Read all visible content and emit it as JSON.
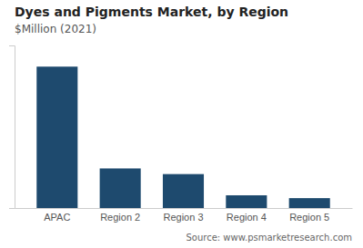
{
  "chart_data": {
    "type": "bar",
    "title": "Dyes and Pigments Market, by Region",
    "subtitle": "$Million (2021)",
    "categories": [
      "APAC",
      "Region 2",
      "Region 3",
      "Region 4",
      "Region 5"
    ],
    "values": [
      100,
      28,
      24,
      9,
      7
    ],
    "color": "#1e4a6e",
    "ylim": [
      0,
      115
    ],
    "tick_labels": "x",
    "annotations": [
      "Source: www.psmarketresearch.com"
    ]
  }
}
